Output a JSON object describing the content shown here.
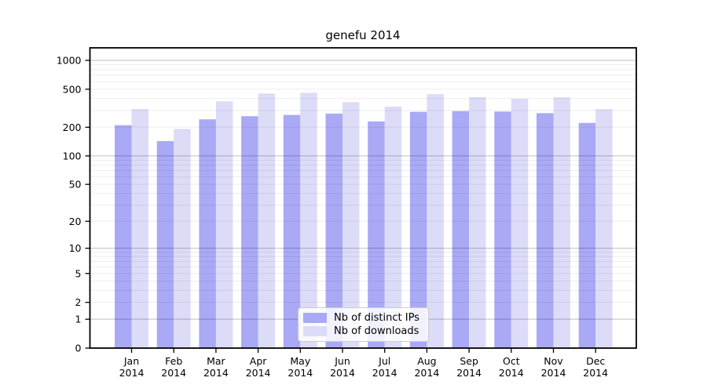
{
  "chart_data": {
    "type": "bar",
    "title": "genefu 2014",
    "categories": [
      {
        "month": "Jan",
        "year": "2014"
      },
      {
        "month": "Feb",
        "year": "2014"
      },
      {
        "month": "Mar",
        "year": "2014"
      },
      {
        "month": "Apr",
        "year": "2014"
      },
      {
        "month": "May",
        "year": "2014"
      },
      {
        "month": "Jun",
        "year": "2014"
      },
      {
        "month": "Jul",
        "year": "2014"
      },
      {
        "month": "Aug",
        "year": "2014"
      },
      {
        "month": "Sep",
        "year": "2014"
      },
      {
        "month": "Oct",
        "year": "2014"
      },
      {
        "month": "Nov",
        "year": "2014"
      },
      {
        "month": "Dec",
        "year": "2014"
      }
    ],
    "series": [
      {
        "name": "Nb of distinct IPs",
        "color": "#a9a9f6",
        "values": [
          210,
          143,
          242,
          261,
          269,
          278,
          230,
          290,
          295,
          292,
          281,
          222
        ]
      },
      {
        "name": "Nb of downloads",
        "color": "#dcdcf9",
        "values": [
          310,
          192,
          373,
          451,
          459,
          366,
          329,
          445,
          413,
          397,
          410,
          309
        ]
      }
    ],
    "y_ticks": [
      1000,
      500,
      200,
      100,
      50,
      20,
      10,
      5,
      2,
      1,
      0
    ],
    "y_scale": "log10(1+v)",
    "ylim": [
      0,
      1352
    ],
    "xlabel": "",
    "ylabel": "",
    "grid": true,
    "legend_position": "lower center"
  },
  "colors": {
    "background": "#ffffff",
    "axis": "#000000",
    "major_grid": "rgba(0,0,0,0.25)",
    "minor_grid": "rgba(0,0,0,0.07)",
    "bar_distinct_ips": "#a9a9f6",
    "bar_downloads": "#dcdcf9"
  }
}
